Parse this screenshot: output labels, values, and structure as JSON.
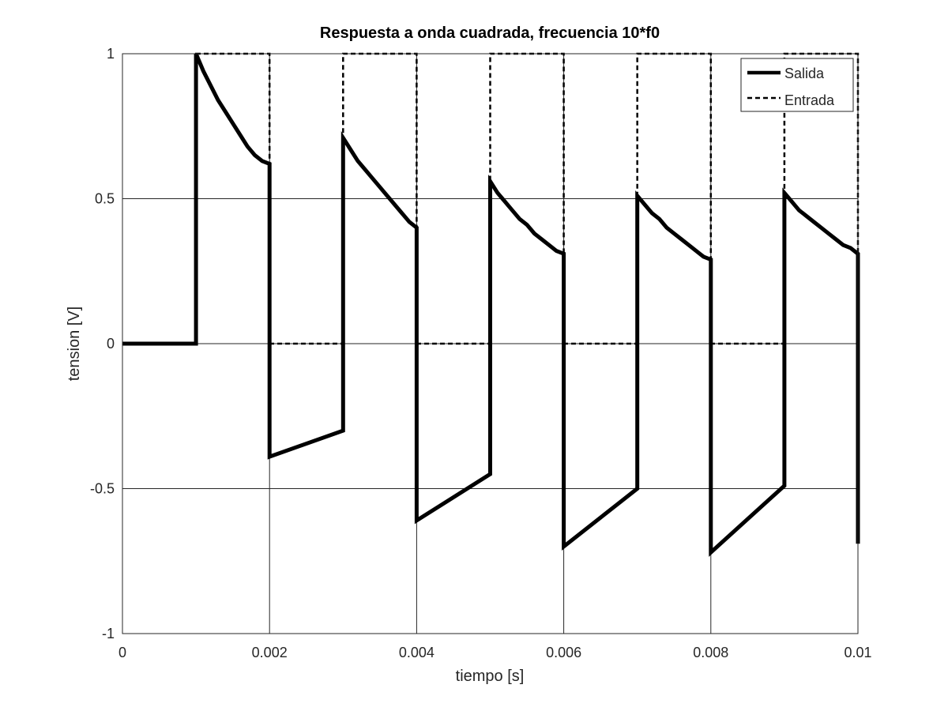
{
  "chart_data": {
    "type": "line",
    "title": "Respuesta a onda cuadrada, frecuencia 10*f0",
    "xlabel": "tiempo [s]",
    "ylabel": "tension [V]",
    "xlim": [
      0,
      0.01
    ],
    "ylim": [
      -1,
      1
    ],
    "grid": true,
    "legend_position": "top-right",
    "xticks": [
      0,
      0.002,
      0.004,
      0.006,
      0.008,
      0.01
    ],
    "xtick_labels": [
      "0",
      "0.002",
      "0.004",
      "0.006",
      "0.008",
      "0.01"
    ],
    "yticks": [
      -1,
      -0.5,
      0,
      0.5,
      1
    ],
    "ytick_labels": [
      "-1",
      "-0.5",
      "0",
      "0.5",
      "1"
    ],
    "series": [
      {
        "name": "Salida",
        "style": "solid",
        "color": "#000000",
        "x": [
          0,
          0.001,
          0.001,
          0.0011,
          0.0012,
          0.0013,
          0.0014,
          0.0015,
          0.0016,
          0.0017,
          0.0018,
          0.0019,
          0.002,
          0.002,
          0.003,
          0.003,
          0.0031,
          0.0032,
          0.0033,
          0.0034,
          0.0035,
          0.0036,
          0.0037,
          0.0038,
          0.0039,
          0.004,
          0.004,
          0.005,
          0.005,
          0.0051,
          0.0052,
          0.0053,
          0.0054,
          0.0055,
          0.0056,
          0.0057,
          0.0058,
          0.0059,
          0.006,
          0.006,
          0.007,
          0.007,
          0.0071,
          0.0072,
          0.0073,
          0.0074,
          0.0075,
          0.0076,
          0.0077,
          0.0078,
          0.0079,
          0.008,
          0.008,
          0.009,
          0.009,
          0.0091,
          0.0092,
          0.0093,
          0.0094,
          0.0095,
          0.0096,
          0.0097,
          0.0098,
          0.0099,
          0.01,
          0.01
        ],
        "y": [
          0,
          0,
          1,
          0.94,
          0.89,
          0.84,
          0.8,
          0.76,
          0.72,
          0.68,
          0.65,
          0.63,
          0.62,
          -0.39,
          -0.3,
          0.71,
          0.67,
          0.63,
          0.6,
          0.57,
          0.54,
          0.51,
          0.48,
          0.45,
          0.42,
          0.4,
          -0.61,
          -0.45,
          0.56,
          0.52,
          0.49,
          0.46,
          0.43,
          0.41,
          0.38,
          0.36,
          0.34,
          0.32,
          0.31,
          -0.7,
          -0.5,
          0.51,
          0.48,
          0.45,
          0.43,
          0.4,
          0.38,
          0.36,
          0.34,
          0.32,
          0.3,
          0.29,
          -0.72,
          -0.49,
          0.52,
          0.49,
          0.46,
          0.44,
          0.42,
          0.4,
          0.38,
          0.36,
          0.34,
          0.33,
          0.31,
          -0.69
        ]
      },
      {
        "name": "Entrada",
        "style": "dashed",
        "color": "#000000",
        "x": [
          0,
          0.001,
          0.001,
          0.002,
          0.002,
          0.003,
          0.003,
          0.004,
          0.004,
          0.005,
          0.005,
          0.006,
          0.006,
          0.007,
          0.007,
          0.008,
          0.008,
          0.009,
          0.009,
          0.01,
          0.01
        ],
        "y": [
          0,
          0,
          1,
          1,
          0,
          0,
          1,
          1,
          0,
          0,
          1,
          1,
          0,
          0,
          1,
          1,
          0,
          0,
          1,
          1,
          0
        ]
      }
    ]
  }
}
